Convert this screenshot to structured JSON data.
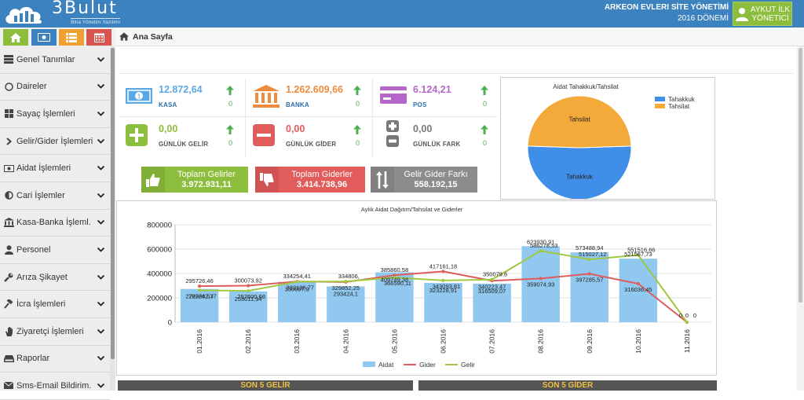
{
  "header": {
    "brand": "3Bulut",
    "subtitle": "Bina Yönetim Yazılımı",
    "site_name": "ARKEON EVLERI SİTE YÖNETİMİ",
    "period": "2016 DÖNEMİ",
    "user_name": "AYKUT İLK",
    "user_role": "YÖNETİCİ"
  },
  "quick_buttons": [
    {
      "icon": "home-icon",
      "color": "#8dbd3c"
    },
    {
      "icon": "money-icon",
      "color": "#3c82bf"
    },
    {
      "icon": "list-icon",
      "color": "#f0a030"
    },
    {
      "icon": "calendar-icon",
      "color": "#d9534f"
    }
  ],
  "breadcrumb": {
    "label": "Ana Sayfa"
  },
  "sidebar": {
    "items": [
      {
        "label": "Genel Tanımlar",
        "icon": "server-icon"
      },
      {
        "label": "Daireler",
        "icon": "circle-icon"
      },
      {
        "label": "Sayaç İşlemleri",
        "icon": "grid-icon"
      },
      {
        "label": "Gelir/Gider İşlemleri",
        "icon": "chevron-right-icon"
      },
      {
        "label": "Aidat İşlemleri",
        "icon": "bill-icon"
      },
      {
        "label": "Cari İşlemler",
        "icon": "circle-half-icon"
      },
      {
        "label": "Kasa-Banka İşleml.",
        "icon": "bank-icon"
      },
      {
        "label": "Personel",
        "icon": "user-icon"
      },
      {
        "label": "Arıza Şikayet",
        "icon": "wrench-icon"
      },
      {
        "label": "İcra İşlemleri",
        "icon": "gavel-icon"
      },
      {
        "label": "Ziyaretçi İşlemleri",
        "icon": "hand-icon"
      },
      {
        "label": "Raporlar",
        "icon": "hdd-icon"
      },
      {
        "label": "Sms-Email Bildirim.",
        "icon": "mail-icon"
      }
    ]
  },
  "stats": {
    "kasa": {
      "value": "12.872,64",
      "label": "KASA",
      "change": "0"
    },
    "banka": {
      "value": "1.262.609,66",
      "label": "BANKA",
      "change": "0"
    },
    "pos": {
      "value": "6.124,21",
      "label": "POS",
      "change": "0"
    },
    "gunluk_gelir": {
      "value": "0,00",
      "label": "GÜNLÜK GELİR",
      "change": "0"
    },
    "gunluk_gider": {
      "value": "0,00",
      "label": "GÜNLÜK GİDER",
      "change": "0"
    },
    "gunluk_fark": {
      "value": "0,00",
      "label": "GÜNLÜK FARK",
      "change": "0"
    }
  },
  "totals": {
    "gelir": {
      "label": "Toplam Gelirler",
      "value": "3.972.931,11"
    },
    "gider": {
      "label": "Toplam Giderler",
      "value": "3.414.738,96"
    },
    "fark": {
      "label": "Gelir Gider Farkı",
      "value": "558.192,15"
    }
  },
  "bottom": {
    "left": "SON 5 GELİR",
    "right": "SON 5 GİDER"
  },
  "colors": {
    "header": "#3c82bf",
    "green": "#8dbd3c",
    "red": "#e25c5c",
    "gray": "#8c8c8c",
    "kasa": "#5aa9e6",
    "banka": "#f08a3c",
    "pos": "#b566c9"
  },
  "chart_data": [
    {
      "type": "pie",
      "title": "Aidat Tahakkuk/Tahsilat",
      "categories": [
        "Tahakkuk",
        "Tahsilat"
      ],
      "values": [
        51,
        49
      ],
      "colors": [
        "#3f8ee8",
        "#f4a93b"
      ],
      "legend": "top-right"
    },
    {
      "type": "bar",
      "title": "Aylık Aidat Dağıtım/Tahsilat ve Giderler",
      "categories": [
        "01.2016",
        "02.2016",
        "03.2016",
        "04.2016",
        "05.2016",
        "06.2016",
        "07.2016",
        "08.2016",
        "09.2016",
        "10.2016",
        "11.2016"
      ],
      "ylim": [
        0,
        800000
      ],
      "yticks": [
        "800000",
        "600000",
        "400000",
        "200000",
        "0"
      ],
      "series": [
        {
          "name": "Aidat",
          "kind": "bar",
          "color": "#90c8f0",
          "values": [
            272986.53,
            253011.94,
            330697.9,
            293424.1,
            409749.38,
            323228.91,
            316509.07,
            623930.91,
            573488.94,
            521567.73,
            0
          ],
          "labels": [
            "272986,53",
            "253011,94",
            "330697,9",
            "293424,1",
            "409749,38",
            "323228,91",
            "316509,07",
            "623930,91",
            "573488,94",
            "521567,73",
            "0"
          ]
        },
        {
          "name": "Gider",
          "kind": "line",
          "color": "#e05c5c",
          "values": [
            295726.46,
            300073.92,
            334254.41,
            329852.25,
            385860.58,
            417161.18,
            340223.47,
            359074.93,
            397285.57,
            316036.45,
            0
          ],
          "labels": [
            "295726,46",
            "300073,92",
            "334254,41",
            "329852,25",
            "385860,58",
            "417161,18",
            "340223,47",
            "359074,93",
            "397285,57",
            "316036,45",
            "0"
          ]
        },
        {
          "name": "Gelir",
          "kind": "line",
          "color": "#a0c840",
          "values": [
            262242.77,
            257600.68,
            332138.77,
            334806.43,
            366590.11,
            343093.81,
            350079.6,
            586278.53,
            515027.12,
            551516.66,
            0
          ],
          "labels": [
            "262242,77",
            "257600,68",
            "332138,77",
            "334806,",
            "366590,11",
            "343093,81",
            "350079,6",
            "586278,53",
            "515027,12",
            "551516,66",
            "0"
          ]
        }
      ],
      "legend": "bottom"
    }
  ]
}
